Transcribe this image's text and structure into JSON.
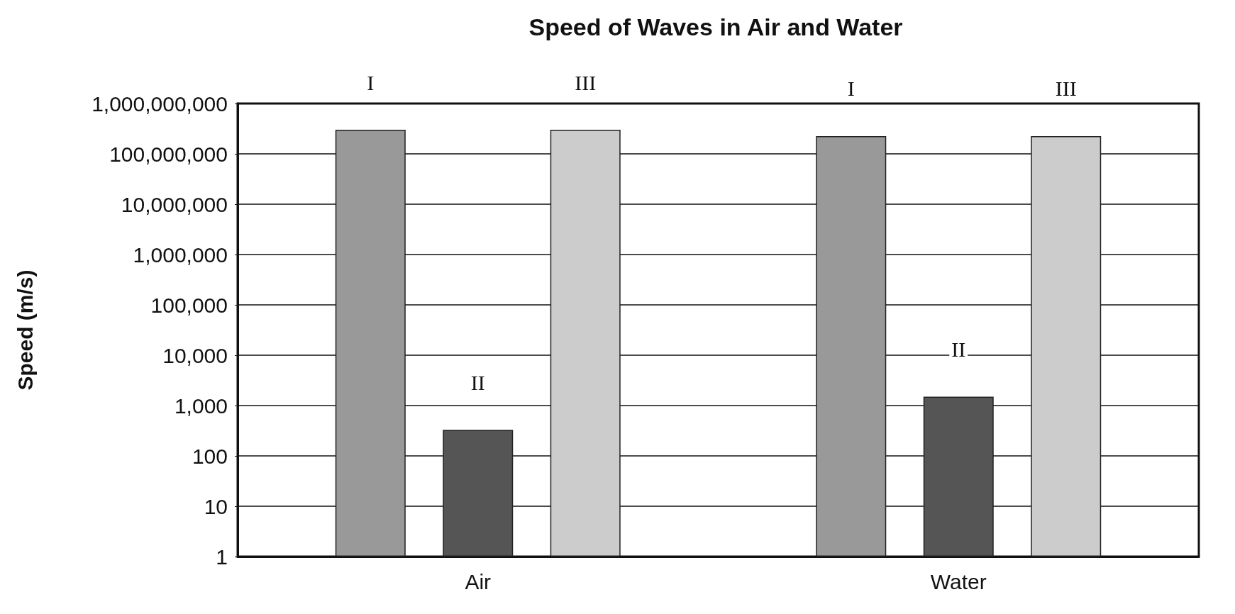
{
  "chart_data": {
    "type": "bar",
    "title": "Speed of Waves in Air and Water",
    "ylabel": "Speed (m/s)",
    "categories": [
      "Air",
      "Water"
    ],
    "series": [
      {
        "name": "I",
        "color": "#999999",
        "values": [
          300000000,
          225000000
        ]
      },
      {
        "name": "II",
        "color": "#555555",
        "values": [
          330,
          1500
        ]
      },
      {
        "name": "III",
        "color": "#cccccc",
        "values": [
          300000000,
          225000000
        ]
      }
    ],
    "log": "y",
    "ylim": [
      1,
      1000000000
    ],
    "yticks": [
      {
        "value": 1,
        "label": "1"
      },
      {
        "value": 10,
        "label": "10"
      },
      {
        "value": 100,
        "label": "100"
      },
      {
        "value": 1000,
        "label": "1,000"
      },
      {
        "value": 10000,
        "label": "10,000"
      },
      {
        "value": 100000,
        "label": "100,000"
      },
      {
        "value": 1000000,
        "label": "1,000,000"
      },
      {
        "value": 10000000,
        "label": "10,000,000"
      },
      {
        "value": 100000000,
        "label": "100,000,000"
      },
      {
        "value": 1000000000,
        "label": "1,000,000,000"
      }
    ],
    "grid": "y",
    "legend": false
  }
}
